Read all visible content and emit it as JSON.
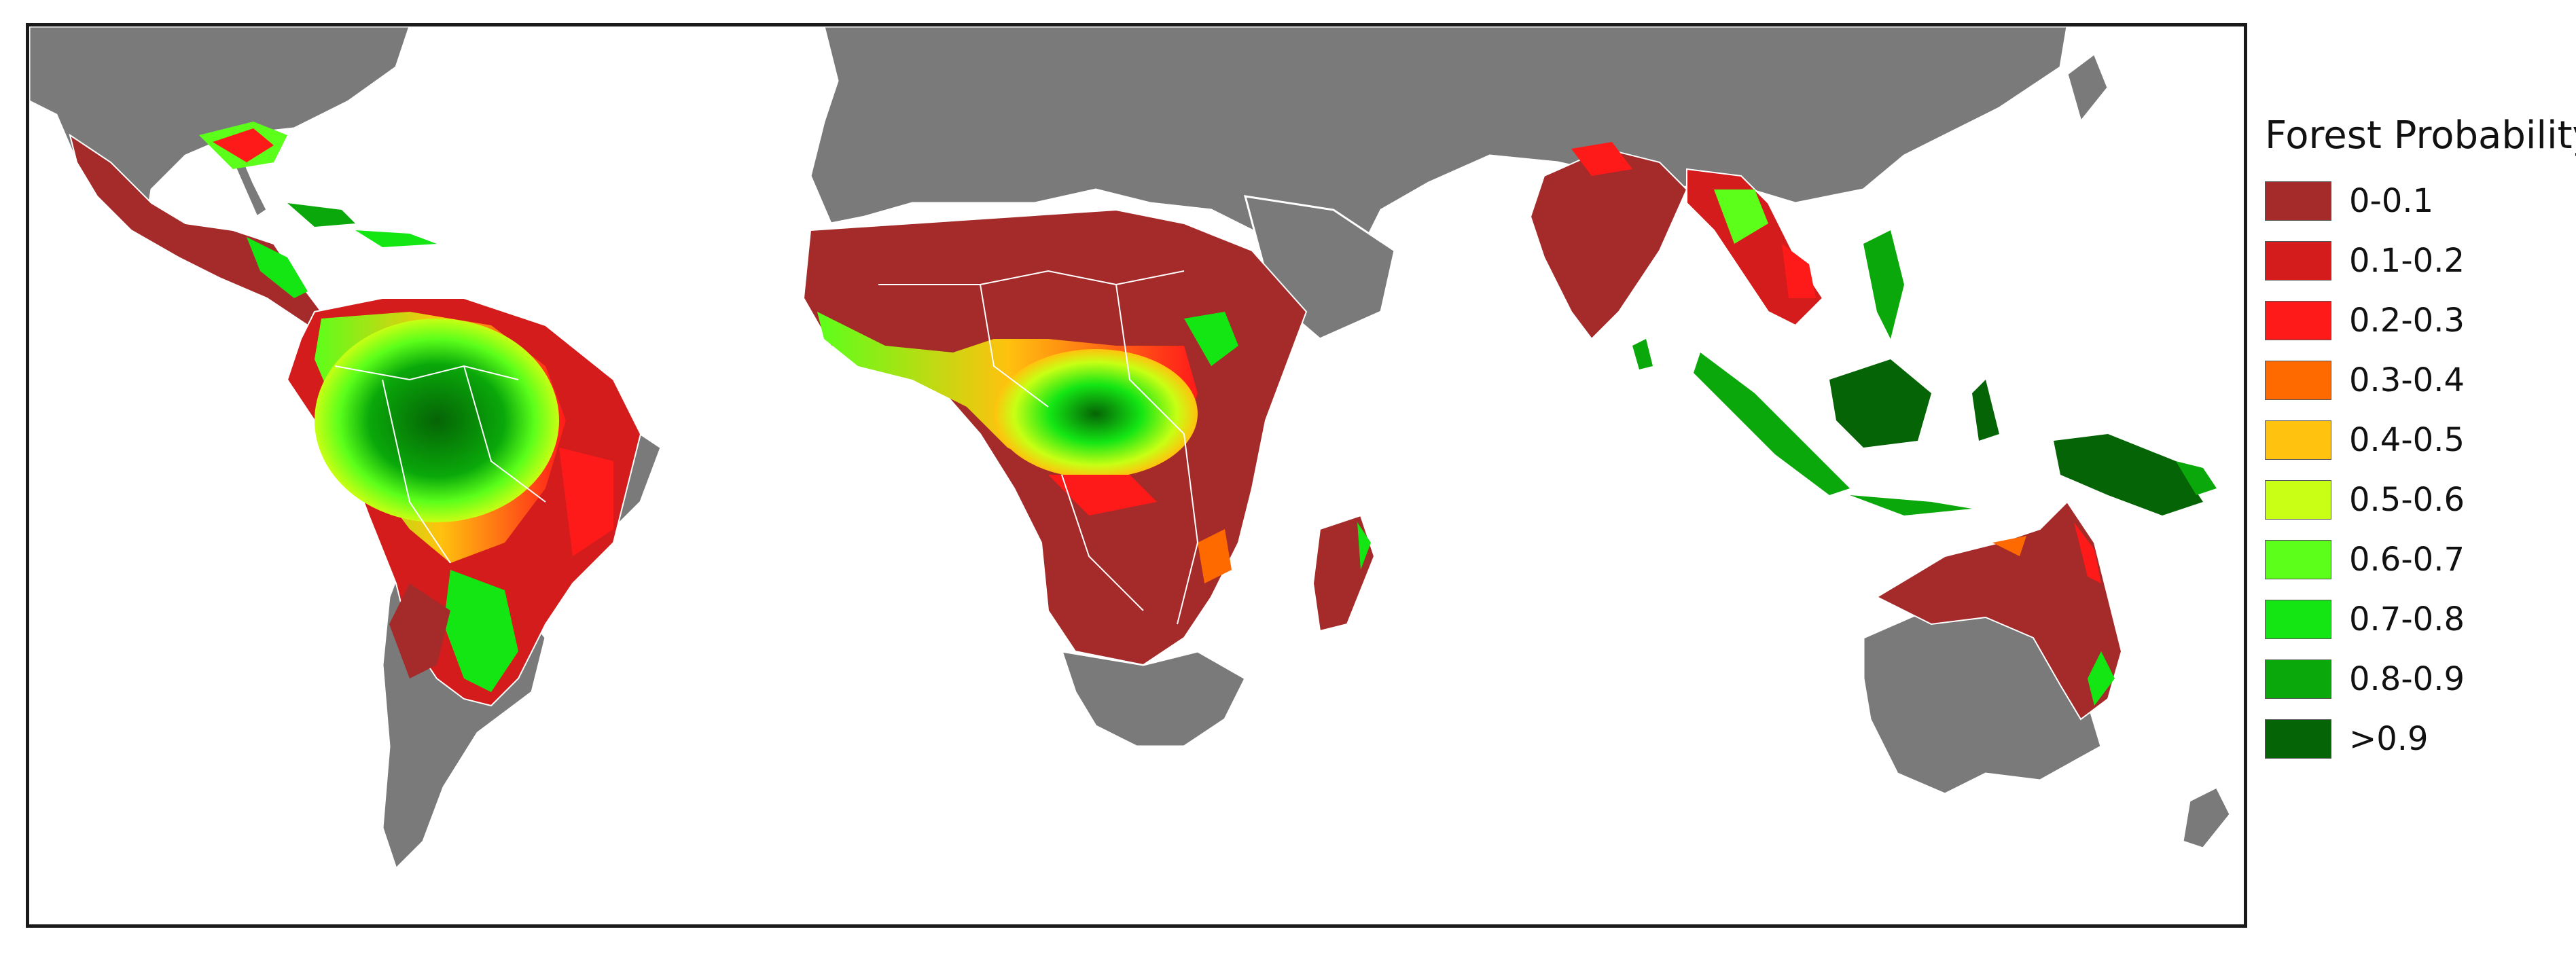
{
  "legend": {
    "title": "Forest Probability",
    "items": [
      {
        "label": "0-0.1",
        "color": "#a52a2a"
      },
      {
        "label": "0.1-0.2",
        "color": "#d41c1c"
      },
      {
        "label": "0.2-0.3",
        "color": "#ff1a1a"
      },
      {
        "label": "0.3-0.4",
        "color": "#ff6a00"
      },
      {
        "label": "0.4-0.5",
        "color": "#ffc20e"
      },
      {
        "label": "0.5-0.6",
        "color": "#c8ff14"
      },
      {
        "label": "0.6-0.7",
        "color": "#5cff1a"
      },
      {
        "label": "0.7-0.8",
        "color": "#14e614"
      },
      {
        "label": "0.8-0.9",
        "color": "#0aa80a"
      },
      {
        "label": ">0.9",
        "color": "#056405"
      }
    ]
  },
  "map": {
    "land_color": "#7a7a7a",
    "border_color": "#ffffff",
    "ocean_color": "#ffffff"
  }
}
